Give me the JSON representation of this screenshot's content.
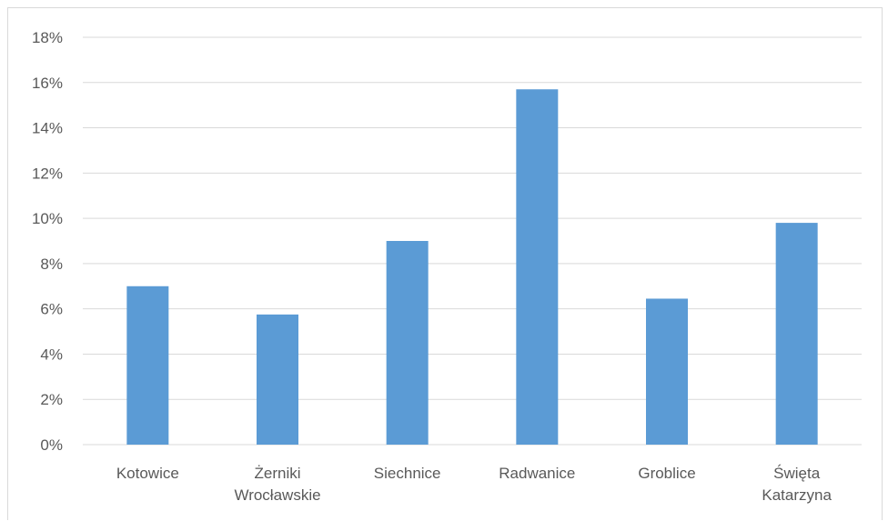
{
  "chart_data": {
    "type": "bar",
    "title": "",
    "xlabel": "",
    "ylabel": "",
    "categories": [
      [
        "Kotowice"
      ],
      [
        "Żerniki",
        "Wrocławskie"
      ],
      [
        "Siechnice"
      ],
      [
        "Radwanice"
      ],
      [
        "Groblice"
      ],
      [
        "Święta",
        "Katarzyna"
      ]
    ],
    "values": [
      7.0,
      5.75,
      9.0,
      15.7,
      6.45,
      9.8
    ],
    "ylim": [
      0,
      18
    ],
    "yticks": [
      0,
      2,
      4,
      6,
      8,
      10,
      12,
      14,
      16,
      18
    ],
    "ytick_labels": [
      "0%",
      "2%",
      "4%",
      "6%",
      "8%",
      "10%",
      "12%",
      "14%",
      "16%",
      "18%"
    ],
    "grid": true,
    "legend": "none",
    "colors": {
      "bar": "#5b9bd5",
      "grid": "#d9d9d9",
      "text": "#595959"
    }
  }
}
